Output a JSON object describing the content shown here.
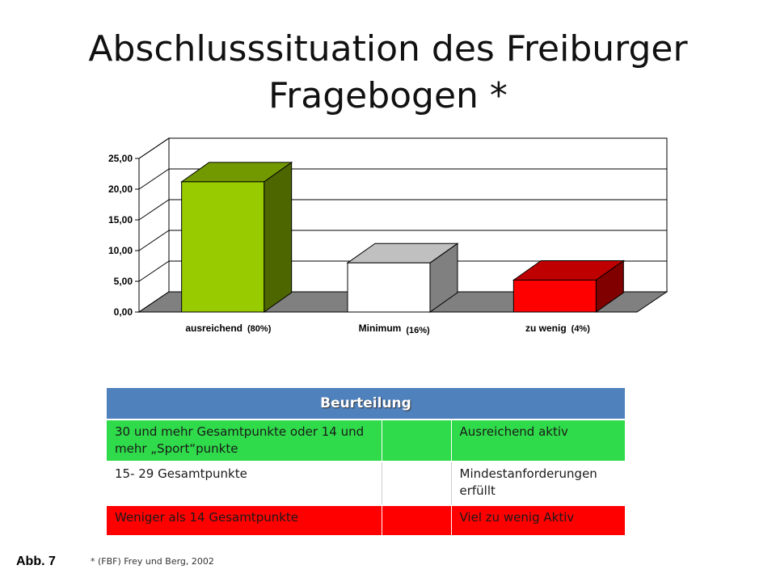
{
  "title": "Abschlusssituation des Freiburger Fragebogen *",
  "chart_data": {
    "type": "bar",
    "categories": [
      "ausreichend",
      "Minimum",
      "zu wenig"
    ],
    "category_percentages": [
      "(80%)",
      "(16%)",
      "(4%)"
    ],
    "values": [
      21.2,
      8.0,
      5.2
    ],
    "ylim": [
      0,
      25
    ],
    "yticks": [
      "0,00",
      "5,00",
      "10,00",
      "15,00",
      "20,00",
      "25,00"
    ],
    "grid": true,
    "three_d": true,
    "bar_colors": [
      "#99cc00",
      "#ffffff",
      "#ff0000"
    ],
    "xlabel": "",
    "ylabel": ""
  },
  "table": {
    "header": "Beurteilung",
    "rows": [
      {
        "col1": "30 und mehr Gesamtpunkte oder 14 und mehr „Sport“punkte",
        "col2": "",
        "col3": "Ausreichend aktiv",
        "color": "#2fdb4a"
      },
      {
        "col1": "15- 29 Gesamtpunkte",
        "col2": "",
        "col3": "Mindestanforderungen erfüllt",
        "color": "#ffffff"
      },
      {
        "col1": "Weniger als 14 Gesamtpunkte",
        "col2": "",
        "col3": "Viel zu wenig Aktiv",
        "color": "#ff0000"
      }
    ]
  },
  "figure_label": "Abb. 7",
  "footnote": "* (FBF) Frey und Berg, 2002"
}
